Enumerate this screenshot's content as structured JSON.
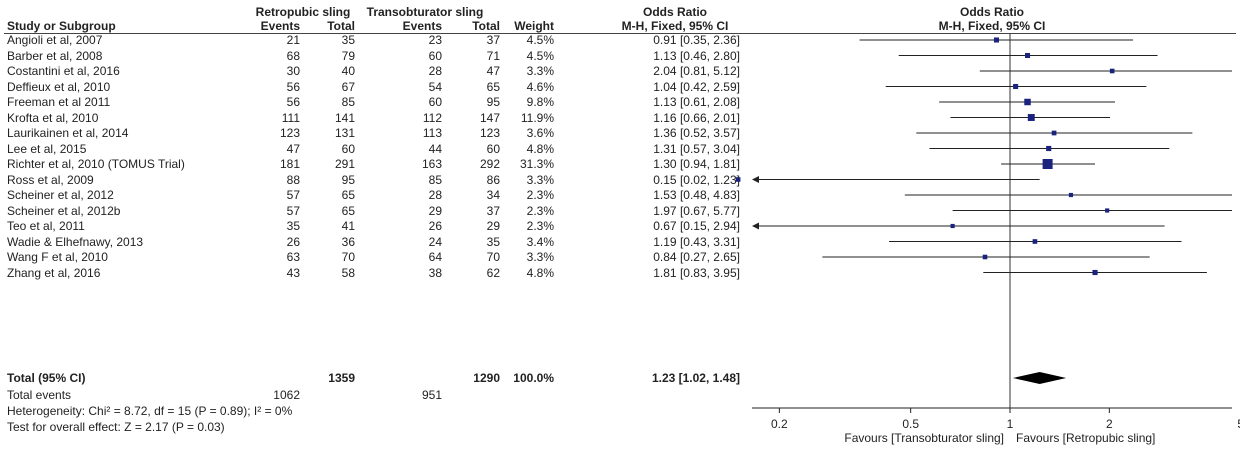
{
  "header": {
    "group1": "Retropubic sling",
    "group2": "Transobturator sling",
    "or_group": "Odds Ratio",
    "study_col": "Study or Subgroup",
    "events1": "Events",
    "total1": "Total",
    "events2": "Events",
    "total2": "Total",
    "weight": "Weight",
    "or_method": "M-H, Fixed, 95% CI",
    "plot_title": "Odds Ratio",
    "plot_method": "M-H, Fixed, 95% CI"
  },
  "studies": [
    {
      "name": "Angioli et al, 2007",
      "e1": "21",
      "t1": "35",
      "e2": "23",
      "t2": "37",
      "weight": "4.5%",
      "ci": "0.91 [0.35, 2.36]"
    },
    {
      "name": "Barber et al, 2008",
      "e1": "68",
      "t1": "79",
      "e2": "60",
      "t2": "71",
      "weight": "4.5%",
      "ci": "1.13 [0.46, 2.80]"
    },
    {
      "name": "Costantini et al, 2016",
      "e1": "30",
      "t1": "40",
      "e2": "28",
      "t2": "47",
      "weight": "3.3%",
      "ci": "2.04 [0.81, 5.12]"
    },
    {
      "name": "Deffieux et al, 2010",
      "e1": "56",
      "t1": "67",
      "e2": "54",
      "t2": "65",
      "weight": "4.6%",
      "ci": "1.04 [0.42, 2.59]"
    },
    {
      "name": "Freeman et al 2011",
      "e1": "56",
      "t1": "85",
      "e2": "60",
      "t2": "95",
      "weight": "9.8%",
      "ci": "1.13 [0.61, 2.08]"
    },
    {
      "name": "Krofta et al, 2010",
      "e1": "111",
      "t1": "141",
      "e2": "112",
      "t2": "147",
      "weight": "11.9%",
      "ci": "1.16 [0.66, 2.01]"
    },
    {
      "name": "Laurikainen et al, 2014",
      "e1": "123",
      "t1": "131",
      "e2": "113",
      "t2": "123",
      "weight": "3.6%",
      "ci": "1.36 [0.52, 3.57]"
    },
    {
      "name": "Lee et al, 2015",
      "e1": "47",
      "t1": "60",
      "e2": "44",
      "t2": "60",
      "weight": "4.8%",
      "ci": "1.31 [0.57, 3.04]"
    },
    {
      "name": "Richter et al, 2010 (TOMUS Trial)",
      "e1": "181",
      "t1": "291",
      "e2": "163",
      "t2": "292",
      "weight": "31.3%",
      "ci": "1.30 [0.94, 1.81]"
    },
    {
      "name": "Ross et al, 2009",
      "e1": "88",
      "t1": "95",
      "e2": "85",
      "t2": "86",
      "weight": "3.3%",
      "ci": "0.15 [0.02, 1.23]"
    },
    {
      "name": "Scheiner et al, 2012",
      "e1": "57",
      "t1": "65",
      "e2": "28",
      "t2": "34",
      "weight": "2.3%",
      "ci": "1.53 [0.48, 4.83]"
    },
    {
      "name": "Scheiner et al, 2012b",
      "e1": "57",
      "t1": "65",
      "e2": "29",
      "t2": "37",
      "weight": "2.3%",
      "ci": "1.97 [0.67, 5.77]"
    },
    {
      "name": "Teo et al, 2011",
      "e1": "35",
      "t1": "41",
      "e2": "26",
      "t2": "29",
      "weight": "2.3%",
      "ci": "0.67 [0.15, 2.94]"
    },
    {
      "name": "Wadie & Elhefnawy, 2013",
      "e1": "26",
      "t1": "36",
      "e2": "24",
      "t2": "35",
      "weight": "3.4%",
      "ci": "1.19 [0.43, 3.31]"
    },
    {
      "name": "Wang F et al, 2010",
      "e1": "63",
      "t1": "70",
      "e2": "64",
      "t2": "70",
      "weight": "3.3%",
      "ci": "0.84 [0.27, 2.65]"
    },
    {
      "name": "Zhang et al, 2016",
      "e1": "43",
      "t1": "58",
      "e2": "38",
      "t2": "62",
      "weight": "4.8%",
      "ci": "1.81 [0.83, 3.95]"
    }
  ],
  "total": {
    "label": "Total (95% CI)",
    "t1": "1359",
    "t2": "1290",
    "weight": "100.0%",
    "ci": "1.23 [1.02, 1.48]"
  },
  "total_events": {
    "label": "Total events",
    "e1": "1062",
    "e2": "951"
  },
  "heterogeneity": "Heterogeneity: Chi² = 8.72, df = 15 (P = 0.89); I² = 0%",
  "overall_effect": "Test for overall effect: Z = 2.17 (P = 0.03)",
  "chart_data": {
    "type": "scatter",
    "subtype": "forest",
    "title": "Odds Ratio",
    "subtitle": "M-H, Fixed, 95% CI",
    "x_scale": "log",
    "xlim": [
      0.1,
      10
    ],
    "x_ticks": [
      "0.2",
      "0.5",
      "1",
      "2",
      "5"
    ],
    "x_tick_values": [
      0.2,
      0.5,
      1,
      2,
      5
    ],
    "reference_line": 1,
    "favours_left": "Favours [Transobturator sling]",
    "favours_right": "Favours [Retropubic sling]",
    "marker_color": "#1a237e",
    "points": [
      {
        "or": 0.91,
        "lo": 0.35,
        "hi": 2.36,
        "weight": 4.5
      },
      {
        "or": 1.13,
        "lo": 0.46,
        "hi": 2.8,
        "weight": 4.5
      },
      {
        "or": 2.04,
        "lo": 0.81,
        "hi": 5.12,
        "weight": 3.3
      },
      {
        "or": 1.04,
        "lo": 0.42,
        "hi": 2.59,
        "weight": 4.6
      },
      {
        "or": 1.13,
        "lo": 0.61,
        "hi": 2.08,
        "weight": 9.8
      },
      {
        "or": 1.16,
        "lo": 0.66,
        "hi": 2.01,
        "weight": 11.9
      },
      {
        "or": 1.36,
        "lo": 0.52,
        "hi": 3.57,
        "weight": 3.6
      },
      {
        "or": 1.31,
        "lo": 0.57,
        "hi": 3.04,
        "weight": 4.8
      },
      {
        "or": 1.3,
        "lo": 0.94,
        "hi": 1.81,
        "weight": 31.3
      },
      {
        "or": 0.15,
        "lo": 0.02,
        "hi": 1.23,
        "weight": 3.3
      },
      {
        "or": 1.53,
        "lo": 0.48,
        "hi": 4.83,
        "weight": 2.3
      },
      {
        "or": 1.97,
        "lo": 0.67,
        "hi": 5.77,
        "weight": 2.3
      },
      {
        "or": 0.67,
        "lo": 0.15,
        "hi": 2.94,
        "weight": 2.3
      },
      {
        "or": 1.19,
        "lo": 0.43,
        "hi": 3.31,
        "weight": 3.4
      },
      {
        "or": 0.84,
        "lo": 0.27,
        "hi": 2.65,
        "weight": 3.3
      },
      {
        "or": 1.81,
        "lo": 0.83,
        "hi": 3.95,
        "weight": 4.8
      }
    ],
    "pooled": {
      "or": 1.23,
      "lo": 1.02,
      "hi": 1.48
    }
  }
}
